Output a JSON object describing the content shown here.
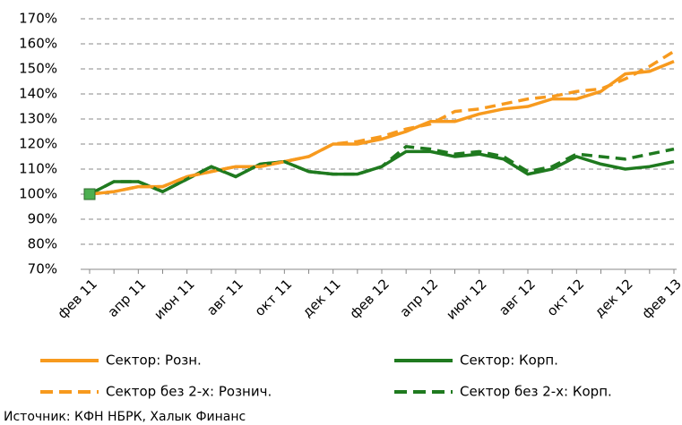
{
  "chart_data": {
    "type": "line",
    "categories": [
      "фев 11",
      null,
      "апр 11",
      null,
      "июн 11",
      null,
      "авг 11",
      null,
      "окт 11",
      null,
      "дек 11",
      null,
      "фев 12",
      null,
      "апр 12",
      null,
      "июн 12",
      null,
      "авг 12",
      null,
      "окт 12",
      null,
      "дек 12",
      null,
      "фев 13"
    ],
    "series": [
      {
        "name": "Сектор: Розн.",
        "color": "#f79a1e",
        "dashed": false,
        "values": [
          100,
          101,
          103,
          103,
          107,
          109,
          111,
          111,
          113,
          115,
          120,
          120,
          122,
          125,
          129,
          129,
          132,
          134,
          135,
          138,
          138,
          141,
          148,
          149,
          153
        ]
      },
      {
        "name": "Сектор: Корп.",
        "color": "#1f7a1f",
        "dashed": false,
        "values": [
          100,
          105,
          105,
          101,
          106,
          111,
          107,
          112,
          113,
          109,
          108,
          108,
          111,
          117,
          117,
          115,
          116,
          114,
          108,
          110,
          115,
          112,
          110,
          111,
          113
        ]
      },
      {
        "name": "Сектор без 2-х: Рознич.",
        "color": "#f79a1e",
        "dashed": true,
        "values": [
          100,
          101,
          103,
          103,
          107,
          109,
          111,
          111,
          113,
          115,
          120,
          121,
          123,
          126,
          128,
          133,
          134,
          136,
          138,
          139,
          141,
          142,
          146,
          151,
          157
        ]
      },
      {
        "name": "Сектор без 2-х: Корп.",
        "color": "#1f7a1f",
        "dashed": true,
        "values": [
          100,
          105,
          105,
          101,
          106,
          111,
          107,
          112,
          113,
          109,
          108,
          108,
          111,
          119,
          118,
          116,
          117,
          115,
          109,
          111,
          116,
          115,
          114,
          116,
          118
        ]
      }
    ],
    "start_marker_color": "#4caf50",
    "ylim": [
      70,
      170
    ],
    "yticks": [
      {
        "value": 70,
        "label": "70%"
      },
      {
        "value": 80,
        "label": "80%"
      },
      {
        "value": 90,
        "label": "90%"
      },
      {
        "value": 100,
        "label": "100%"
      },
      {
        "value": 110,
        "label": "110%"
      },
      {
        "value": 120,
        "label": "120%"
      },
      {
        "value": 130,
        "label": "130%"
      },
      {
        "value": 140,
        "label": "140%"
      },
      {
        "value": 150,
        "label": "150%"
      },
      {
        "value": 160,
        "label": "160%"
      },
      {
        "value": 170,
        "label": "170%"
      }
    ],
    "grid": true,
    "legend": "bottom",
    "source": "Источник: КФН НБРК, Халык Финанс"
  }
}
